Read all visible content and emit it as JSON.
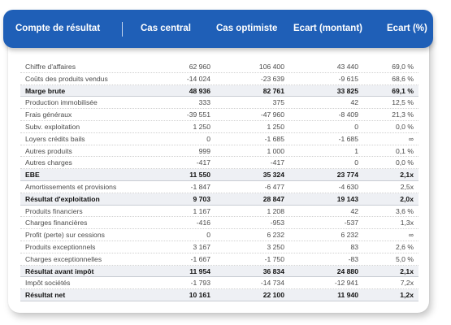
{
  "header": {
    "title": "Compte de résultat",
    "col1": "Cas central",
    "col2": "Cas optimiste",
    "col3": "Ecart (montant)",
    "col4": "Ecart (%)"
  },
  "colors": {
    "header_bg": "#1f5fb7",
    "bold_row_bg": "#eef0f4"
  },
  "rows": [
    {
      "label": "Chiffre d'affaires",
      "central": "62 960",
      "optimiste": "106 400",
      "ecart": "43 440",
      "pct": "69,0 %",
      "bold": false
    },
    {
      "label": "Coûts des produits vendus",
      "central": "-14 024",
      "optimiste": "-23 639",
      "ecart": "-9 615",
      "pct": "68,6 %",
      "bold": false
    },
    {
      "label": "Marge brute",
      "central": "48 936",
      "optimiste": "82 761",
      "ecart": "33 825",
      "pct": "69,1 %",
      "bold": true
    },
    {
      "label": "Production immobilisée",
      "central": "333",
      "optimiste": "375",
      "ecart": "42",
      "pct": "12,5 %",
      "bold": false
    },
    {
      "label": "Frais généraux",
      "central": "-39 551",
      "optimiste": "-47 960",
      "ecart": "-8 409",
      "pct": "21,3 %",
      "bold": false
    },
    {
      "label": "Subv. exploitation",
      "central": "1 250",
      "optimiste": "1 250",
      "ecart": "0",
      "pct": "0,0 %",
      "bold": false
    },
    {
      "label": "Loyers crédits bails",
      "central": "0",
      "optimiste": "-1 685",
      "ecart": "-1 685",
      "pct": "∞",
      "bold": false
    },
    {
      "label": "Autres produits",
      "central": "999",
      "optimiste": "1 000",
      "ecart": "1",
      "pct": "0,1 %",
      "bold": false
    },
    {
      "label": "Autres charges",
      "central": "-417",
      "optimiste": "-417",
      "ecart": "0",
      "pct": "0,0 %",
      "bold": false
    },
    {
      "label": "EBE",
      "central": "11 550",
      "optimiste": "35 324",
      "ecart": "23 774",
      "pct": "2,1x",
      "bold": true
    },
    {
      "label": "Amortissements et provisions",
      "central": "-1 847",
      "optimiste": "-6 477",
      "ecart": "-4 630",
      "pct": "2,5x",
      "bold": false
    },
    {
      "label": "Résultat d'exploitation",
      "central": "9 703",
      "optimiste": "28 847",
      "ecart": "19 143",
      "pct": "2,0x",
      "bold": true
    },
    {
      "label": "Produits financiers",
      "central": "1 167",
      "optimiste": "1 208",
      "ecart": "42",
      "pct": "3,6 %",
      "bold": false
    },
    {
      "label": "Charges financières",
      "central": "-416",
      "optimiste": "-953",
      "ecart": "-537",
      "pct": "1,3x",
      "bold": false
    },
    {
      "label": "Profit (perte) sur cessions",
      "central": "0",
      "optimiste": "6 232",
      "ecart": "6 232",
      "pct": "∞",
      "bold": false
    },
    {
      "label": "Produits exceptionnels",
      "central": "3 167",
      "optimiste": "3 250",
      "ecart": "83",
      "pct": "2,6 %",
      "bold": false
    },
    {
      "label": "Charges exceptionnelles",
      "central": "-1 667",
      "optimiste": "-1 750",
      "ecart": "-83",
      "pct": "5,0 %",
      "bold": false
    },
    {
      "label": "Résultat avant impôt",
      "central": "11 954",
      "optimiste": "36 834",
      "ecart": "24 880",
      "pct": "2,1x",
      "bold": true
    },
    {
      "label": "Impôt sociétés",
      "central": "-1 793",
      "optimiste": "-14 734",
      "ecart": "-12 941",
      "pct": "7,2x",
      "bold": false
    },
    {
      "label": "Résultat net",
      "central": "10 161",
      "optimiste": "22 100",
      "ecart": "11 940",
      "pct": "1,2x",
      "bold": true
    }
  ]
}
